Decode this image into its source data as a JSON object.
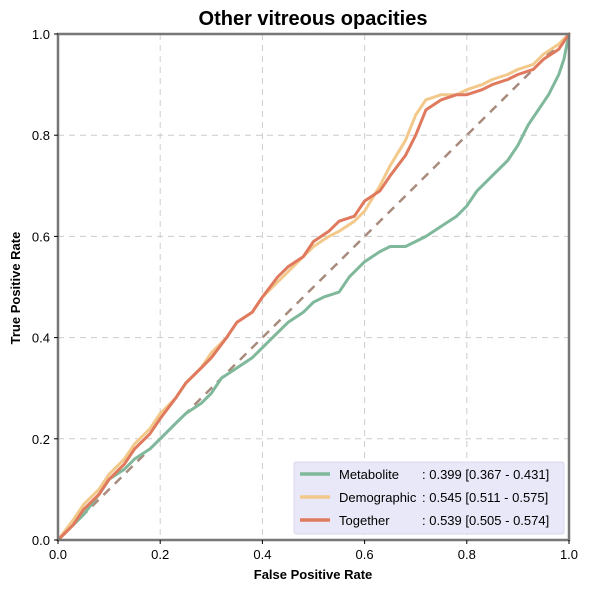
{
  "chart_data": {
    "type": "line",
    "title": "Other vitreous opacities",
    "xlabel": "False Positive Rate",
    "ylabel": "True Positive Rate",
    "xlim": [
      0,
      1
    ],
    "ylim": [
      0,
      1
    ],
    "xticks": [
      "0.0",
      "0.2",
      "0.4",
      "0.6",
      "0.8",
      "1.0"
    ],
    "yticks": [
      "0.0",
      "0.2",
      "0.4",
      "0.6",
      "0.8",
      "1.0"
    ],
    "grid": true,
    "legend_position": "lower-right",
    "series": [
      {
        "name": "Metabolite",
        "auc_label": ": 0.399 [0.367 - 0.431]",
        "color": "#7fb89b",
        "x": [
          0.0,
          0.02,
          0.05,
          0.08,
          0.1,
          0.13,
          0.15,
          0.18,
          0.2,
          0.23,
          0.25,
          0.28,
          0.3,
          0.32,
          0.35,
          0.38,
          0.4,
          0.42,
          0.45,
          0.48,
          0.5,
          0.52,
          0.55,
          0.57,
          0.6,
          0.63,
          0.65,
          0.68,
          0.7,
          0.72,
          0.75,
          0.78,
          0.8,
          0.82,
          0.85,
          0.88,
          0.9,
          0.92,
          0.94,
          0.96,
          0.98,
          0.99,
          1.0
        ],
        "y": [
          0.0,
          0.02,
          0.05,
          0.09,
          0.12,
          0.14,
          0.16,
          0.18,
          0.2,
          0.23,
          0.25,
          0.27,
          0.29,
          0.32,
          0.34,
          0.36,
          0.38,
          0.4,
          0.43,
          0.45,
          0.47,
          0.48,
          0.49,
          0.52,
          0.55,
          0.57,
          0.58,
          0.58,
          0.59,
          0.6,
          0.62,
          0.64,
          0.66,
          0.69,
          0.72,
          0.75,
          0.78,
          0.82,
          0.85,
          0.88,
          0.92,
          0.95,
          1.0
        ]
      },
      {
        "name": "Demographic",
        "auc_label": ": 0.545 [0.511 - 0.575]",
        "color": "#f3c98b",
        "x": [
          0.0,
          0.03,
          0.05,
          0.08,
          0.1,
          0.13,
          0.15,
          0.18,
          0.2,
          0.23,
          0.25,
          0.28,
          0.3,
          0.33,
          0.35,
          0.38,
          0.4,
          0.43,
          0.45,
          0.48,
          0.5,
          0.53,
          0.55,
          0.58,
          0.6,
          0.63,
          0.65,
          0.68,
          0.7,
          0.72,
          0.75,
          0.78,
          0.8,
          0.83,
          0.85,
          0.88,
          0.9,
          0.93,
          0.95,
          0.98,
          1.0
        ],
        "y": [
          0.0,
          0.04,
          0.07,
          0.1,
          0.13,
          0.16,
          0.19,
          0.22,
          0.25,
          0.28,
          0.31,
          0.34,
          0.37,
          0.4,
          0.43,
          0.45,
          0.48,
          0.51,
          0.53,
          0.56,
          0.58,
          0.6,
          0.61,
          0.63,
          0.65,
          0.7,
          0.74,
          0.79,
          0.84,
          0.87,
          0.88,
          0.88,
          0.89,
          0.9,
          0.91,
          0.92,
          0.93,
          0.94,
          0.96,
          0.98,
          1.0
        ]
      },
      {
        "name": "Together",
        "auc_label": ": 0.539 [0.505 - 0.574]",
        "color": "#e07a5f",
        "x": [
          0.0,
          0.03,
          0.05,
          0.08,
          0.1,
          0.13,
          0.15,
          0.18,
          0.2,
          0.23,
          0.25,
          0.28,
          0.3,
          0.33,
          0.35,
          0.38,
          0.4,
          0.43,
          0.45,
          0.48,
          0.5,
          0.53,
          0.55,
          0.58,
          0.6,
          0.63,
          0.65,
          0.68,
          0.7,
          0.72,
          0.75,
          0.78,
          0.8,
          0.83,
          0.85,
          0.88,
          0.9,
          0.93,
          0.95,
          0.98,
          1.0
        ],
        "y": [
          0.0,
          0.03,
          0.06,
          0.09,
          0.12,
          0.15,
          0.18,
          0.21,
          0.24,
          0.28,
          0.31,
          0.34,
          0.36,
          0.4,
          0.43,
          0.45,
          0.48,
          0.52,
          0.54,
          0.56,
          0.59,
          0.61,
          0.63,
          0.64,
          0.67,
          0.69,
          0.72,
          0.76,
          0.8,
          0.85,
          0.87,
          0.88,
          0.88,
          0.89,
          0.9,
          0.91,
          0.92,
          0.93,
          0.95,
          0.97,
          1.0
        ]
      }
    ],
    "reference_line": {
      "x": [
        0,
        1
      ],
      "y": [
        0,
        1
      ],
      "color": "#a88b7d",
      "style": "dashed"
    }
  },
  "colors": {
    "legend_background": "#e8e8f8",
    "axis_frame": "#777777",
    "grid": "#cccccc"
  }
}
